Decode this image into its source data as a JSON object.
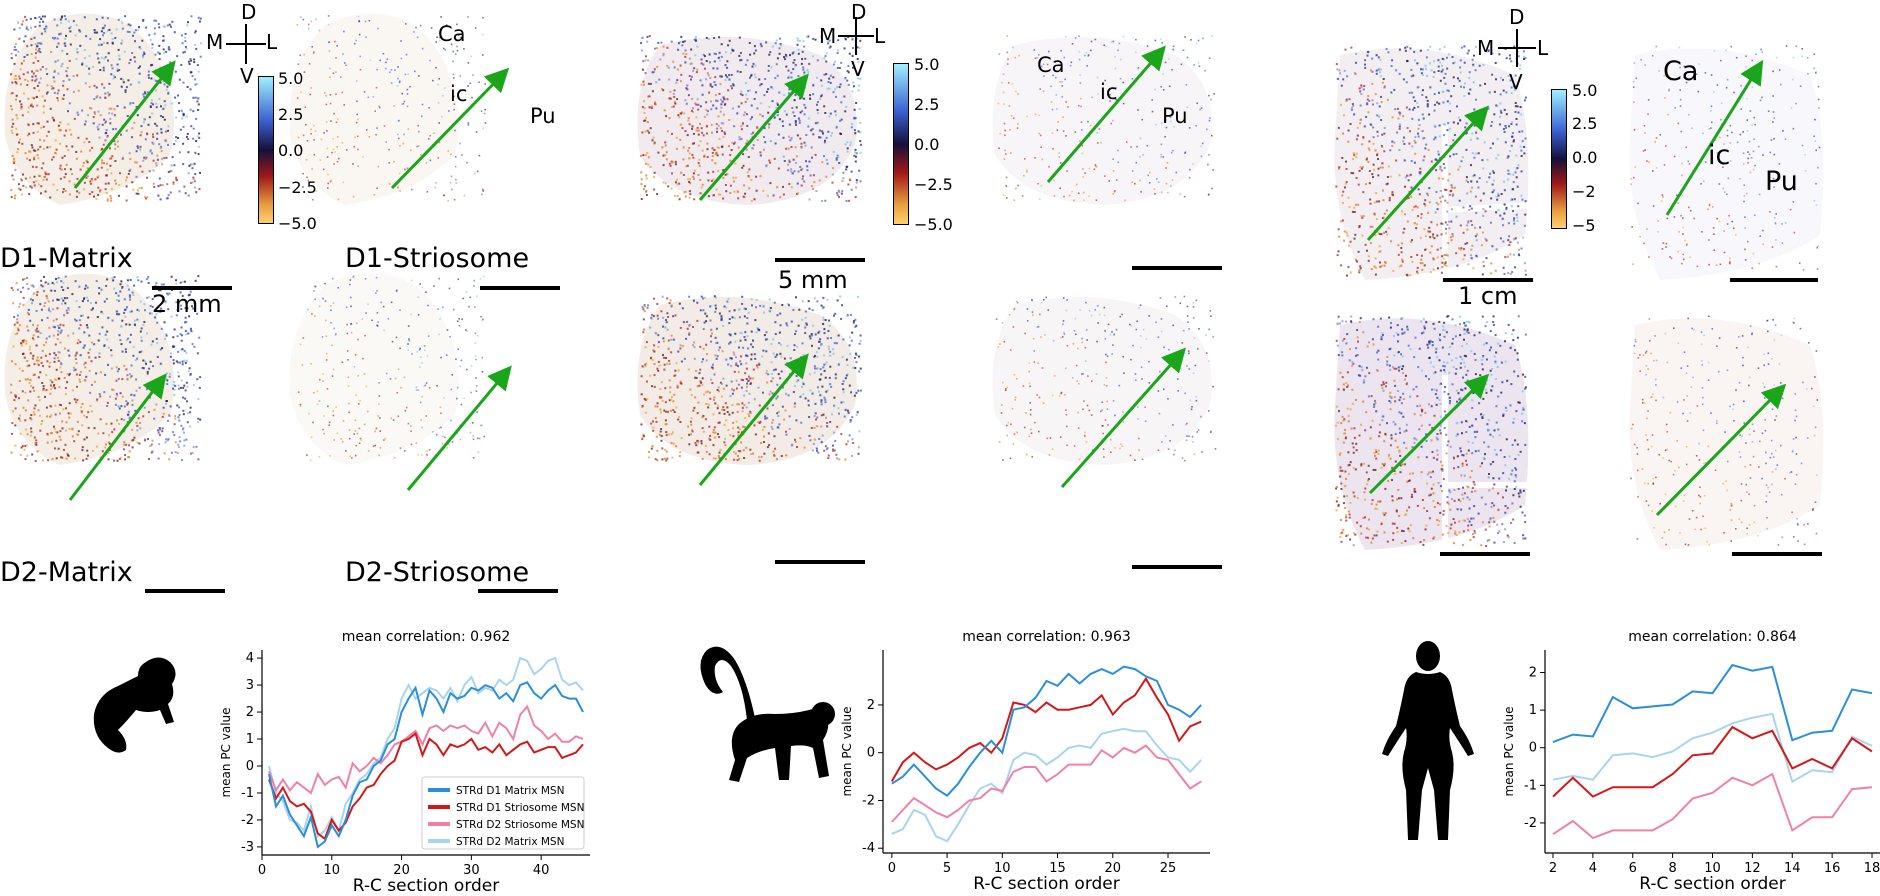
{
  "panels": {
    "orientation": {
      "dorsal": "D",
      "ventral": "V",
      "medial": "M",
      "lateral": "L"
    },
    "regions": {
      "caudate": "Ca",
      "internal_capsule": "ic",
      "putamen": "Pu"
    },
    "row_labels": {
      "d1_matrix": "D1-Matrix",
      "d1_striosome": "D1-Striosome",
      "d2_matrix": "D2-Matrix",
      "d2_striosome": "D2-Striosome"
    },
    "scale_labels": {
      "marmoset": "2 mm",
      "macaque": "5 mm",
      "human": "1 cm"
    },
    "colorbars": {
      "marmoset": [
        "5.0",
        "2.5",
        "0.0",
        "−2.5",
        "−5.0"
      ],
      "macaque": [
        "5.0",
        "2.5",
        "0.0",
        "−2.5",
        "−5.0"
      ],
      "human": [
        "5.0",
        "2.5",
        "0.0",
        "−2",
        "−5"
      ]
    },
    "colors": {
      "arrow": "#1aa51a",
      "scale_bar": "#000000"
    },
    "icons": [
      "marmoset-silhouette-icon",
      "monkey-silhouette-icon",
      "human-silhouette-icon"
    ]
  },
  "chart_data": [
    {
      "type": "line",
      "title": "mean correlation: 0.962",
      "xlabel": "R-C section order",
      "ylabel": "mean PC value",
      "xlim": [
        0,
        47
      ],
      "ylim": [
        -3.3,
        4.3
      ],
      "xticks": [
        0,
        10,
        20,
        30,
        40
      ],
      "yticks": [
        -3,
        -2,
        -1,
        0,
        1,
        2,
        3,
        4
      ],
      "legend": "bottom-right",
      "x": [
        1,
        2,
        3,
        4,
        5,
        6,
        7,
        8,
        9,
        10,
        11,
        12,
        13,
        14,
        15,
        16,
        17,
        18,
        19,
        20,
        21,
        22,
        23,
        24,
        25,
        26,
        27,
        28,
        29,
        30,
        31,
        32,
        33,
        34,
        35,
        36,
        37,
        38,
        39,
        40,
        41,
        42,
        43,
        44,
        45,
        46
      ],
      "series": [
        {
          "name": "STRd D1 Matrix MSN",
          "color": "#2a8fd8",
          "values": [
            -0.3,
            -1.5,
            -1.1,
            -1.8,
            -2.2,
            -2.6,
            -1.9,
            -3.0,
            -2.8,
            -2.2,
            -2.6,
            -2.0,
            -1.1,
            -0.6,
            -0.5,
            0.0,
            0.2,
            0.8,
            1.0,
            2.0,
            2.5,
            2.9,
            1.9,
            2.8,
            2.5,
            2.0,
            2.7,
            2.5,
            2.6,
            2.9,
            2.8,
            3.0,
            2.9,
            2.5,
            2.7,
            2.4,
            3.0,
            3.1,
            2.7,
            2.5,
            2.8,
            3.0,
            2.6,
            2.5,
            2.5,
            2.0
          ]
        },
        {
          "name": "STRd D1 Striosome MSN",
          "color": "#d41818",
          "values": [
            -0.5,
            -1.2,
            -0.8,
            -1.3,
            -1.5,
            -1.4,
            -1.7,
            -2.5,
            -2.7,
            -2.0,
            -2.4,
            -2.1,
            -1.5,
            -1.2,
            -0.8,
            -0.7,
            -0.3,
            0.0,
            0.2,
            0.9,
            1.0,
            1.2,
            0.4,
            1.0,
            0.8,
            0.4,
            0.8,
            0.7,
            0.8,
            1.0,
            0.6,
            0.7,
            0.5,
            0.8,
            0.4,
            0.6,
            0.8,
            0.9,
            0.5,
            0.6,
            0.7,
            0.7,
            0.3,
            0.4,
            0.5,
            0.8
          ]
        },
        {
          "name": "STRd D2 Striosome MSN",
          "color": "#f080a8",
          "values": [
            -0.2,
            -0.9,
            -0.5,
            -0.9,
            -0.6,
            -0.8,
            -1.0,
            -0.3,
            -0.7,
            -0.5,
            -0.4,
            -0.8,
            0.1,
            -0.2,
            0.0,
            0.3,
            0.1,
            0.4,
            0.8,
            0.9,
            1.1,
            1.3,
            0.8,
            1.4,
            1.5,
            1.3,
            1.5,
            1.4,
            1.5,
            1.3,
            1.2,
            1.6,
            1.1,
            1.6,
            1.4,
            1.0,
            1.9,
            2.2,
            1.5,
            1.3,
            1.0,
            1.2,
            0.9,
            0.9,
            1.1,
            1.0
          ]
        },
        {
          "name": "STRd D2 Matrix MSN",
          "color": "#a8d4f0",
          "values": [
            0.0,
            -1.0,
            -1.3,
            -2.0,
            -2.1,
            -2.4,
            -1.5,
            -2.6,
            -2.4,
            -1.9,
            -2.4,
            -1.4,
            -1.0,
            -0.5,
            -0.3,
            0.1,
            0.3,
            1.0,
            1.4,
            2.5,
            3.0,
            2.5,
            2.7,
            2.9,
            2.8,
            2.5,
            2.9,
            2.4,
            3.0,
            3.3,
            2.7,
            2.9,
            2.8,
            3.2,
            3.0,
            3.2,
            4.0,
            3.9,
            3.4,
            3.6,
            3.9,
            4.0,
            3.2,
            3.0,
            3.1,
            2.8
          ]
        }
      ]
    },
    {
      "type": "line",
      "title": "mean correlation: 0.963",
      "xlabel": "R-C section order",
      "ylabel": "mean PC value",
      "xlim": [
        -0.8,
        28.8
      ],
      "ylim": [
        -4.2,
        4.3
      ],
      "xticks": [
        0,
        5,
        10,
        15,
        20,
        25
      ],
      "yticks": [
        -4,
        -2,
        0,
        2
      ],
      "x": [
        0,
        1,
        2,
        3,
        4,
        5,
        6,
        7,
        8,
        9,
        10,
        11,
        12,
        13,
        14,
        15,
        16,
        17,
        18,
        19,
        20,
        21,
        22,
        23,
        24,
        25,
        26,
        27,
        28
      ],
      "series": [
        {
          "name": "STRd D1 Matrix MSN",
          "color": "#2a8fd8",
          "values": [
            -1.3,
            -1.0,
            -0.5,
            -1.0,
            -1.5,
            -1.8,
            -1.3,
            -0.6,
            0.0,
            0.5,
            0.0,
            1.8,
            1.9,
            2.3,
            3.0,
            2.8,
            3.3,
            2.9,
            3.3,
            3.5,
            3.3,
            3.6,
            3.5,
            3.2,
            3.0,
            2.0,
            1.8,
            1.5,
            2.0
          ]
        },
        {
          "name": "STRd D1 Striosome MSN",
          "color": "#d41818",
          "values": [
            -1.2,
            -0.4,
            0.0,
            -0.4,
            -0.7,
            -0.5,
            -0.2,
            0.2,
            0.4,
            0.0,
            0.6,
            2.1,
            2.0,
            1.7,
            2.1,
            1.8,
            1.8,
            1.9,
            2.0,
            2.4,
            1.6,
            2.1,
            2.4,
            3.1,
            2.3,
            1.6,
            0.5,
            1.1,
            1.3
          ]
        },
        {
          "name": "STRd D2 Striosome MSN",
          "color": "#f080a8",
          "values": [
            -2.9,
            -2.4,
            -1.9,
            -2.2,
            -2.5,
            -2.7,
            -2.4,
            -2.0,
            -1.9,
            -1.5,
            -1.6,
            -0.8,
            -0.6,
            -0.6,
            -1.2,
            -0.9,
            -0.5,
            -0.5,
            -0.5,
            0.1,
            -0.2,
            0.2,
            0.0,
            0.3,
            -0.2,
            -0.3,
            -0.9,
            -1.5,
            -1.2
          ]
        },
        {
          "name": "STRd D2 Matrix MSN",
          "color": "#a8d4f0",
          "values": [
            -3.4,
            -3.2,
            -2.4,
            -2.6,
            -3.5,
            -3.7,
            -3.0,
            -2.2,
            -1.5,
            -1.3,
            -1.7,
            -0.3,
            0.0,
            -0.1,
            -0.5,
            -0.2,
            0.2,
            0.3,
            0.2,
            0.8,
            0.9,
            1.0,
            0.9,
            0.9,
            0.3,
            -0.2,
            -0.3,
            -0.8,
            -0.3
          ]
        }
      ]
    },
    {
      "type": "line",
      "title": "mean correlation: 0.864",
      "xlabel": "R-C section order",
      "ylabel": "mean PC value",
      "xlim": [
        1.6,
        18.4
      ],
      "ylim": [
        -2.8,
        2.6
      ],
      "xticks": [
        2,
        4,
        6,
        8,
        10,
        12,
        14,
        16,
        18
      ],
      "yticks": [
        -2,
        -1,
        0,
        1,
        2
      ],
      "x": [
        2,
        3,
        4,
        5,
        6,
        7,
        8,
        9,
        10,
        11,
        12,
        13,
        14,
        15,
        16,
        17,
        18
      ],
      "series": [
        {
          "name": "STRd D1 Matrix MSN",
          "color": "#2a8fd8",
          "values": [
            0.15,
            0.35,
            0.3,
            1.35,
            1.05,
            1.1,
            1.15,
            1.5,
            1.45,
            2.2,
            2.05,
            2.15,
            0.2,
            0.4,
            0.45,
            1.55,
            1.45
          ]
        },
        {
          "name": "STRd D1 Striosome MSN",
          "color": "#d41818",
          "values": [
            -1.3,
            -0.8,
            -1.3,
            -1.05,
            -1.05,
            -1.05,
            -0.7,
            -0.2,
            -0.15,
            0.55,
            0.25,
            0.45,
            -0.55,
            -0.3,
            -0.55,
            0.25,
            -0.1
          ]
        },
        {
          "name": "STRd D2 Striosome MSN",
          "color": "#f080a8",
          "values": [
            -2.3,
            -1.95,
            -2.4,
            -2.2,
            -2.2,
            -2.2,
            -1.9,
            -1.35,
            -1.2,
            -0.8,
            -1.0,
            -0.7,
            -2.2,
            -1.85,
            -1.85,
            -1.1,
            -1.05
          ]
        },
        {
          "name": "STRd D2 Matrix MSN",
          "color": "#a8d4f0",
          "values": [
            -0.85,
            -0.75,
            -0.85,
            -0.2,
            -0.15,
            -0.25,
            -0.1,
            0.25,
            0.4,
            0.65,
            0.8,
            0.9,
            -0.9,
            -0.6,
            -0.65,
            0.3,
            0.05
          ]
        }
      ]
    }
  ]
}
